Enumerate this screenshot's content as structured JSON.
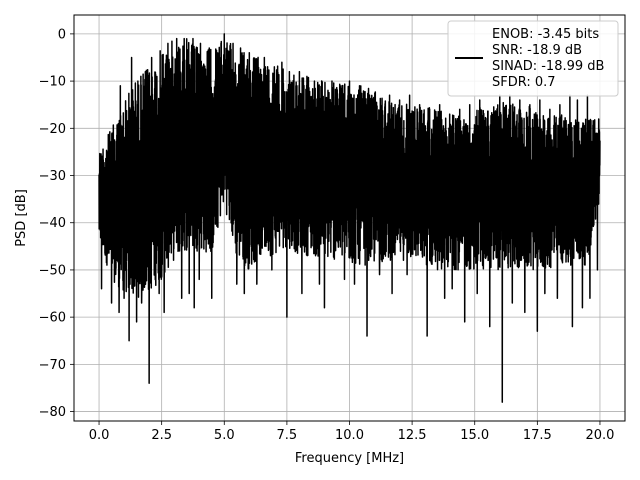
{
  "chart_data": {
    "type": "line",
    "title": "",
    "xlabel": "Frequency [MHz]",
    "ylabel": "PSD [dB]",
    "xlim": [
      -1.0,
      21.0
    ],
    "ylim": [
      -82,
      4
    ],
    "xticks": [
      0.0,
      2.5,
      5.0,
      7.5,
      10.0,
      12.5,
      15.0,
      17.5,
      20.0
    ],
    "xtick_labels": [
      "0.0",
      "2.5",
      "5.0",
      "7.5",
      "10.0",
      "12.5",
      "15.0",
      "17.5",
      "20.0"
    ],
    "yticks": [
      0,
      -10,
      -20,
      -30,
      -40,
      -50,
      -60,
      -70,
      -80
    ],
    "ytick_labels": [
      "0",
      "−10",
      "−20",
      "−30",
      "−40",
      "−50",
      "−60",
      "−70",
      "−80"
    ],
    "grid": true,
    "legend": {
      "placement": "top-right",
      "entries": [
        "ENOB: -3.45 bits\nSNR: -18.9 dB\nSINAD: -18.99 dB\nSFDR: 0.7"
      ]
    },
    "series": [
      {
        "color": "#000000",
        "envelope": {
          "x": [
            0.0,
            0.5,
            1.0,
            1.5,
            2.0,
            2.5,
            3.0,
            3.5,
            4.0,
            4.5,
            5.0,
            5.5,
            6.0,
            6.5,
            7.0,
            7.5,
            8.0,
            8.5,
            9.0,
            9.5,
            10.0,
            10.5,
            11.0,
            11.5,
            12.0,
            12.5,
            13.0,
            13.5,
            14.0,
            14.5,
            15.0,
            15.5,
            16.0,
            16.5,
            17.0,
            17.5,
            18.0,
            18.5,
            19.0,
            19.5,
            20.0
          ],
          "upper": [
            -24,
            -20,
            -14,
            -9,
            -7,
            -3,
            -1,
            -1,
            -3,
            -3,
            -1,
            -3,
            -4,
            -5,
            -6,
            -8,
            -8,
            -9,
            -10,
            -10,
            -11,
            -11,
            -12,
            -13,
            -14,
            -15,
            -15,
            -16,
            -17,
            -17,
            -16,
            -15,
            -14,
            -14,
            -15,
            -16,
            -17,
            -17,
            -18,
            -18,
            -18
          ],
          "lower": [
            -44,
            -52,
            -55,
            -56,
            -55,
            -52,
            -48,
            -46,
            -46,
            -47,
            -36,
            -48,
            -50,
            -47,
            -47,
            -45,
            -47,
            -47,
            -48,
            -48,
            -49,
            -49,
            -49,
            -48,
            -48,
            -48,
            -49,
            -50,
            -50,
            -50,
            -50,
            -50,
            -50,
            -50,
            -50,
            -50,
            -50,
            -49,
            -49,
            -49,
            -35
          ]
        },
        "dips": [
          {
            "x": 0.1,
            "y": -54
          },
          {
            "x": 0.5,
            "y": -57
          },
          {
            "x": 0.8,
            "y": -59
          },
          {
            "x": 1.0,
            "y": -56
          },
          {
            "x": 1.2,
            "y": -65
          },
          {
            "x": 1.5,
            "y": -61
          },
          {
            "x": 1.7,
            "y": -57
          },
          {
            "x": 2.0,
            "y": -74
          },
          {
            "x": 2.4,
            "y": -55
          },
          {
            "x": 2.6,
            "y": -59
          },
          {
            "x": 3.3,
            "y": -56
          },
          {
            "x": 3.6,
            "y": -55
          },
          {
            "x": 3.8,
            "y": -58
          },
          {
            "x": 4.0,
            "y": -52
          },
          {
            "x": 4.5,
            "y": -56
          },
          {
            "x": 5.5,
            "y": -53
          },
          {
            "x": 5.8,
            "y": -55
          },
          {
            "x": 6.3,
            "y": -53
          },
          {
            "x": 6.9,
            "y": -50
          },
          {
            "x": 7.5,
            "y": -60
          },
          {
            "x": 8.1,
            "y": -55
          },
          {
            "x": 8.8,
            "y": -53
          },
          {
            "x": 9.0,
            "y": -58
          },
          {
            "x": 9.8,
            "y": -52
          },
          {
            "x": 10.2,
            "y": -53
          },
          {
            "x": 10.7,
            "y": -64
          },
          {
            "x": 11.2,
            "y": -51
          },
          {
            "x": 11.7,
            "y": -55
          },
          {
            "x": 12.3,
            "y": -51
          },
          {
            "x": 13.1,
            "y": -64
          },
          {
            "x": 13.8,
            "y": -56
          },
          {
            "x": 14.1,
            "y": -54
          },
          {
            "x": 14.6,
            "y": -61
          },
          {
            "x": 15.1,
            "y": -55
          },
          {
            "x": 15.6,
            "y": -62
          },
          {
            "x": 16.1,
            "y": -78
          },
          {
            "x": 16.5,
            "y": -57
          },
          {
            "x": 17.0,
            "y": -59
          },
          {
            "x": 17.5,
            "y": -63
          },
          {
            "x": 17.8,
            "y": -55
          },
          {
            "x": 18.3,
            "y": -56
          },
          {
            "x": 18.9,
            "y": -62
          },
          {
            "x": 19.3,
            "y": -58
          },
          {
            "x": 19.6,
            "y": -56
          },
          {
            "x": 19.9,
            "y": -50
          }
        ],
        "spurs": [
          {
            "x": 0.85,
            "y": -11
          },
          {
            "x": 1.3,
            "y": -5
          },
          {
            "x": 1.55,
            "y": -10
          },
          {
            "x": 1.85,
            "y": -8
          },
          {
            "x": 2.1,
            "y": -5
          },
          {
            "x": 2.4,
            "y": -2
          },
          {
            "x": 2.75,
            "y": -2
          },
          {
            "x": 3.1,
            "y": -1
          },
          {
            "x": 3.4,
            "y": -1
          },
          {
            "x": 3.75,
            "y": -1
          },
          {
            "x": 4.05,
            "y": -2
          },
          {
            "x": 4.4,
            "y": -3
          },
          {
            "x": 5.0,
            "y": 0
          },
          {
            "x": 5.35,
            "y": -2
          },
          {
            "x": 5.65,
            "y": -3
          },
          {
            "x": 6.0,
            "y": -4
          },
          {
            "x": 6.3,
            "y": -4
          },
          {
            "x": 6.6,
            "y": -5
          },
          {
            "x": 7.0,
            "y": -7
          },
          {
            "x": 7.3,
            "y": -6
          },
          {
            "x": 7.6,
            "y": -8
          },
          {
            "x": 8.0,
            "y": -8
          },
          {
            "x": 8.3,
            "y": -9
          },
          {
            "x": 8.6,
            "y": -10
          },
          {
            "x": 9.0,
            "y": -9
          },
          {
            "x": 9.3,
            "y": -10
          },
          {
            "x": 9.7,
            "y": -11
          },
          {
            "x": 10.0,
            "y": -10
          },
          {
            "x": 10.4,
            "y": -11
          },
          {
            "x": 10.8,
            "y": -13
          },
          {
            "x": 11.2,
            "y": -12
          },
          {
            "x": 11.6,
            "y": -13
          },
          {
            "x": 12.0,
            "y": -14
          },
          {
            "x": 12.4,
            "y": -13
          },
          {
            "x": 12.8,
            "y": -15
          },
          {
            "x": 13.2,
            "y": -16
          },
          {
            "x": 13.6,
            "y": -15
          },
          {
            "x": 14.0,
            "y": -17
          },
          {
            "x": 14.4,
            "y": -16
          },
          {
            "x": 14.8,
            "y": -15
          },
          {
            "x": 15.2,
            "y": -14
          },
          {
            "x": 15.6,
            "y": -14
          },
          {
            "x": 16.0,
            "y": -13
          },
          {
            "x": 16.4,
            "y": -13
          },
          {
            "x": 16.8,
            "y": -14
          },
          {
            "x": 17.2,
            "y": -15
          },
          {
            "x": 17.6,
            "y": -14
          },
          {
            "x": 18.0,
            "y": -16
          },
          {
            "x": 18.4,
            "y": -15
          },
          {
            "x": 18.8,
            "y": -13
          },
          {
            "x": 19.1,
            "y": -14
          },
          {
            "x": 19.5,
            "y": -13
          },
          {
            "x": 19.9,
            "y": -18
          }
        ]
      }
    ]
  }
}
